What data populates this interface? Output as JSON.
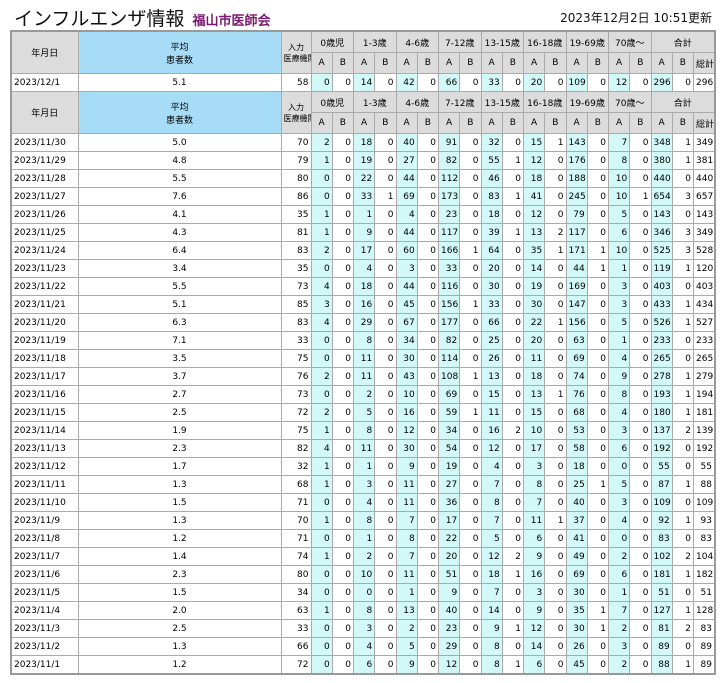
{
  "header": {
    "title": "インフルエンザ情報",
    "org": "福山市医師会",
    "updated": "2023年12月2日 10:51更新"
  },
  "columns": {
    "date": "年月日",
    "avg": "平均\n患者数",
    "count": "入力\n医療機関数",
    "groups": [
      "0歳児",
      "1-3歳",
      "4-6歳",
      "7-12歳",
      "13-15歳",
      "16-18歳",
      "19-69歳",
      "70歳〜",
      "合計"
    ],
    "a": "A",
    "b": "B",
    "total": "総計"
  },
  "colors": {
    "header": "#dcdcdc",
    "avg_header": "#a6dcf6",
    "a_cell": "#d2f8f8",
    "org": "#7a1a6e"
  },
  "latest": {
    "date": "2023/12/1",
    "avg": "5.1",
    "count": 58,
    "values": [
      0,
      0,
      14,
      0,
      42,
      0,
      66,
      0,
      33,
      0,
      20,
      0,
      109,
      0,
      12,
      0,
      296,
      0,
      296
    ]
  },
  "rows": [
    {
      "date": "2023/11/30",
      "avg": "5.0",
      "count": 70,
      "values": [
        2,
        0,
        18,
        0,
        40,
        0,
        91,
        0,
        32,
        0,
        15,
        1,
        143,
        0,
        7,
        0,
        348,
        1,
        349
      ]
    },
    {
      "date": "2023/11/29",
      "avg": "4.8",
      "count": 79,
      "values": [
        1,
        0,
        19,
        0,
        27,
        0,
        82,
        0,
        55,
        1,
        12,
        0,
        176,
        0,
        8,
        0,
        380,
        1,
        381
      ]
    },
    {
      "date": "2023/11/28",
      "avg": "5.5",
      "count": 80,
      "values": [
        0,
        0,
        22,
        0,
        44,
        0,
        112,
        0,
        46,
        0,
        18,
        0,
        188,
        0,
        10,
        0,
        440,
        0,
        440
      ]
    },
    {
      "date": "2023/11/27",
      "avg": "7.6",
      "count": 86,
      "values": [
        0,
        0,
        33,
        1,
        69,
        0,
        173,
        0,
        83,
        1,
        41,
        0,
        245,
        0,
        10,
        1,
        654,
        3,
        657
      ]
    },
    {
      "date": "2023/11/26",
      "avg": "4.1",
      "count": 35,
      "values": [
        1,
        0,
        1,
        0,
        4,
        0,
        23,
        0,
        18,
        0,
        12,
        0,
        79,
        0,
        5,
        0,
        143,
        0,
        143
      ]
    },
    {
      "date": "2023/11/25",
      "avg": "4.3",
      "count": 81,
      "values": [
        1,
        0,
        9,
        0,
        44,
        0,
        117,
        0,
        39,
        1,
        13,
        2,
        117,
        0,
        6,
        0,
        346,
        3,
        349
      ]
    },
    {
      "date": "2023/11/24",
      "avg": "6.4",
      "count": 83,
      "values": [
        2,
        0,
        17,
        0,
        60,
        0,
        166,
        1,
        64,
        0,
        35,
        1,
        171,
        1,
        10,
        0,
        525,
        3,
        528
      ]
    },
    {
      "date": "2023/11/23",
      "avg": "3.4",
      "count": 35,
      "values": [
        0,
        0,
        4,
        0,
        3,
        0,
        33,
        0,
        20,
        0,
        14,
        0,
        44,
        1,
        1,
        0,
        119,
        1,
        120
      ]
    },
    {
      "date": "2023/11/22",
      "avg": "5.5",
      "count": 73,
      "values": [
        4,
        0,
        18,
        0,
        44,
        0,
        116,
        0,
        30,
        0,
        19,
        0,
        169,
        0,
        3,
        0,
        403,
        0,
        403
      ]
    },
    {
      "date": "2023/11/21",
      "avg": "5.1",
      "count": 85,
      "values": [
        3,
        0,
        16,
        0,
        45,
        0,
        156,
        1,
        33,
        0,
        30,
        0,
        147,
        0,
        3,
        0,
        433,
        1,
        434
      ]
    },
    {
      "date": "2023/11/20",
      "avg": "6.3",
      "count": 83,
      "values": [
        4,
        0,
        29,
        0,
        67,
        0,
        177,
        0,
        66,
        0,
        22,
        1,
        156,
        0,
        5,
        0,
        526,
        1,
        527
      ]
    },
    {
      "date": "2023/11/19",
      "avg": "7.1",
      "count": 33,
      "values": [
        0,
        0,
        8,
        0,
        34,
        0,
        82,
        0,
        25,
        0,
        20,
        0,
        63,
        0,
        1,
        0,
        233,
        0,
        233
      ]
    },
    {
      "date": "2023/11/18",
      "avg": "3.5",
      "count": 75,
      "values": [
        0,
        0,
        11,
        0,
        30,
        0,
        114,
        0,
        26,
        0,
        11,
        0,
        69,
        0,
        4,
        0,
        265,
        0,
        265
      ]
    },
    {
      "date": "2023/11/17",
      "avg": "3.7",
      "count": 76,
      "values": [
        2,
        0,
        11,
        0,
        43,
        0,
        108,
        1,
        13,
        0,
        18,
        0,
        74,
        0,
        9,
        0,
        278,
        1,
        279
      ]
    },
    {
      "date": "2023/11/16",
      "avg": "2.7",
      "count": 73,
      "values": [
        0,
        0,
        2,
        0,
        10,
        0,
        69,
        0,
        15,
        0,
        13,
        1,
        76,
        0,
        8,
        0,
        193,
        1,
        194
      ]
    },
    {
      "date": "2023/11/15",
      "avg": "2.5",
      "count": 72,
      "values": [
        2,
        0,
        5,
        0,
        16,
        0,
        59,
        1,
        11,
        0,
        15,
        0,
        68,
        0,
        4,
        0,
        180,
        1,
        181
      ]
    },
    {
      "date": "2023/11/14",
      "avg": "1.9",
      "count": 75,
      "values": [
        1,
        0,
        8,
        0,
        12,
        0,
        34,
        0,
        16,
        2,
        10,
        0,
        53,
        0,
        3,
        0,
        137,
        2,
        139
      ]
    },
    {
      "date": "2023/11/13",
      "avg": "2.3",
      "count": 82,
      "values": [
        4,
        0,
        11,
        0,
        30,
        0,
        54,
        0,
        12,
        0,
        17,
        0,
        58,
        0,
        6,
        0,
        192,
        0,
        192
      ]
    },
    {
      "date": "2023/11/12",
      "avg": "1.7",
      "count": 32,
      "values": [
        1,
        0,
        1,
        0,
        9,
        0,
        19,
        0,
        4,
        0,
        3,
        0,
        18,
        0,
        0,
        0,
        55,
        0,
        55
      ]
    },
    {
      "date": "2023/11/11",
      "avg": "1.3",
      "count": 68,
      "values": [
        1,
        0,
        3,
        0,
        11,
        0,
        27,
        0,
        7,
        0,
        8,
        0,
        25,
        1,
        5,
        0,
        87,
        1,
        88
      ]
    },
    {
      "date": "2023/11/10",
      "avg": "1.5",
      "count": 71,
      "values": [
        0,
        0,
        4,
        0,
        11,
        0,
        36,
        0,
        8,
        0,
        7,
        0,
        40,
        0,
        3,
        0,
        109,
        0,
        109
      ]
    },
    {
      "date": "2023/11/9",
      "avg": "1.3",
      "count": 70,
      "values": [
        1,
        0,
        8,
        0,
        7,
        0,
        17,
        0,
        7,
        0,
        11,
        1,
        37,
        0,
        4,
        0,
        92,
        1,
        93
      ]
    },
    {
      "date": "2023/11/8",
      "avg": "1.2",
      "count": 71,
      "values": [
        0,
        0,
        1,
        0,
        8,
        0,
        22,
        0,
        5,
        0,
        6,
        0,
        41,
        0,
        0,
        0,
        83,
        0,
        83
      ]
    },
    {
      "date": "2023/11/7",
      "avg": "1.4",
      "count": 74,
      "values": [
        1,
        0,
        2,
        0,
        7,
        0,
        20,
        0,
        12,
        2,
        9,
        0,
        49,
        0,
        2,
        0,
        102,
        2,
        104
      ]
    },
    {
      "date": "2023/11/6",
      "avg": "2.3",
      "count": 80,
      "values": [
        0,
        0,
        10,
        0,
        11,
        0,
        51,
        0,
        18,
        1,
        16,
        0,
        69,
        0,
        6,
        0,
        181,
        1,
        182
      ]
    },
    {
      "date": "2023/11/5",
      "avg": "1.5",
      "count": 34,
      "values": [
        0,
        0,
        0,
        0,
        1,
        0,
        9,
        0,
        7,
        0,
        3,
        0,
        30,
        0,
        1,
        0,
        51,
        0,
        51
      ]
    },
    {
      "date": "2023/11/4",
      "avg": "2.0",
      "count": 63,
      "values": [
        1,
        0,
        8,
        0,
        13,
        0,
        40,
        0,
        14,
        0,
        9,
        0,
        35,
        1,
        7,
        0,
        127,
        1,
        128
      ]
    },
    {
      "date": "2023/11/3",
      "avg": "2.5",
      "count": 33,
      "values": [
        0,
        0,
        3,
        0,
        2,
        0,
        23,
        0,
        9,
        1,
        12,
        0,
        30,
        1,
        2,
        0,
        81,
        2,
        83
      ]
    },
    {
      "date": "2023/11/2",
      "avg": "1.3",
      "count": 66,
      "values": [
        0,
        0,
        4,
        0,
        5,
        0,
        29,
        0,
        8,
        0,
        14,
        0,
        26,
        0,
        3,
        0,
        89,
        0,
        89
      ]
    },
    {
      "date": "2023/11/1",
      "avg": "1.2",
      "count": 72,
      "values": [
        0,
        0,
        6,
        0,
        9,
        0,
        12,
        0,
        8,
        1,
        6,
        0,
        45,
        0,
        2,
        0,
        88,
        1,
        89
      ]
    }
  ]
}
